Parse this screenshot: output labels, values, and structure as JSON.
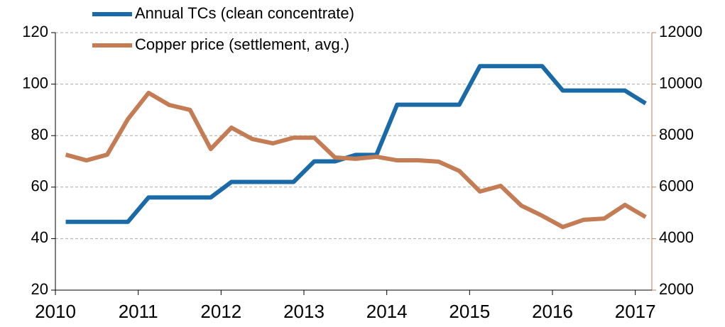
{
  "chart_data": {
    "type": "line",
    "x": [
      2010.125,
      2010.375,
      2010.625,
      2010.875,
      2011.125,
      2011.375,
      2011.625,
      2011.875,
      2012.125,
      2012.375,
      2012.625,
      2012.875,
      2013.125,
      2013.375,
      2013.625,
      2013.875,
      2014.125,
      2014.375,
      2014.625,
      2014.875,
      2015.125,
      2015.375,
      2015.625,
      2015.875,
      2016.125,
      2016.375,
      2016.625,
      2016.875,
      2017.125
    ],
    "series": [
      {
        "name": "Annual TCs (clean concentrate)",
        "color": "#1a6aa8",
        "values": [
          46.5,
          46.5,
          46.5,
          46.5,
          56,
          56,
          56,
          56,
          62,
          62,
          62,
          62,
          70,
          70,
          72.5,
          72.5,
          92,
          92,
          92,
          92,
          107,
          107,
          107,
          107,
          97.5,
          97.5,
          97.5,
          97.5,
          92.5
        ]
      },
      {
        "name": "Copper price (settlement, avg.)",
        "color": "#c47c55",
        "axis": "y2",
        "values": [
          7260,
          7040,
          7260,
          8640,
          9660,
          9190,
          9000,
          7480,
          8310,
          7870,
          7700,
          7920,
          7920,
          7150,
          7100,
          7180,
          7040,
          7040,
          6990,
          6630,
          5830,
          6050,
          5280,
          4890,
          4450,
          4730,
          4780,
          5310,
          4840
        ]
      }
    ],
    "xlim": [
      2010,
      2017.2
    ],
    "xticks": [
      2010,
      2011,
      2012,
      2013,
      2014,
      2015,
      2016,
      2017
    ],
    "ylim": [
      20,
      120
    ],
    "yticks": [
      20,
      40,
      60,
      80,
      100,
      120
    ],
    "y2lim": [
      2000,
      12000
    ],
    "y2ticks": [
      2000,
      4000,
      6000,
      8000,
      10000,
      12000
    ],
    "grid": true
  }
}
